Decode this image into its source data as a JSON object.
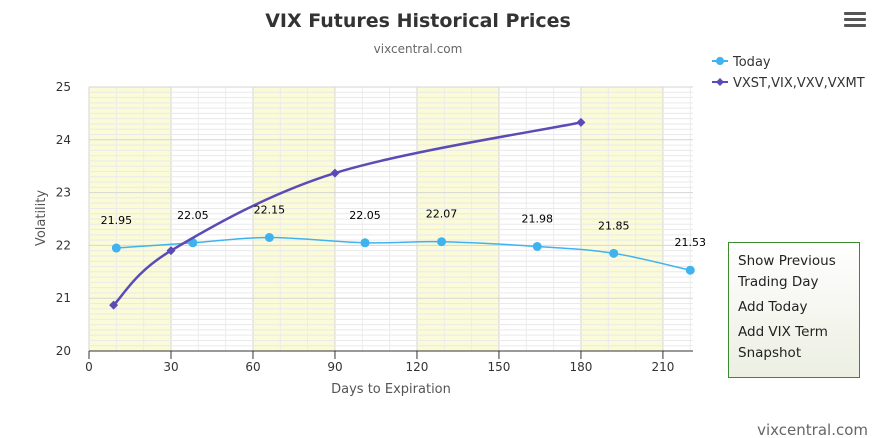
{
  "chart_data": {
    "type": "line",
    "title": "VIX Futures Historical Prices",
    "subtitle": "vixcentral.com",
    "xlabel": "Days to Expiration",
    "ylabel": "Volatility",
    "xlim": [
      0,
      221
    ],
    "ylim": [
      20,
      25
    ],
    "x_ticks": [
      "0",
      "30",
      "60",
      "90",
      "120",
      "150",
      "180",
      "210"
    ],
    "y_ticks": [
      "20",
      "21",
      "22",
      "23",
      "24",
      "25"
    ],
    "plot_bands": [
      [
        0,
        30
      ],
      [
        60,
        90
      ],
      [
        120,
        150
      ],
      [
        180,
        210
      ]
    ],
    "band_color": "#fbfbd8",
    "grid": true,
    "legend_position": "top-right",
    "series": [
      {
        "name": "Today",
        "color": "#3fb3ef",
        "marker": "circle",
        "x": [
          10,
          38,
          66,
          101,
          129,
          164,
          192,
          220
        ],
        "y": [
          21.95,
          22.05,
          22.15,
          22.05,
          22.07,
          21.98,
          21.85,
          21.53
        ],
        "labels": [
          "21.95",
          "22.05",
          "22.15",
          "22.05",
          "22.07",
          "21.98",
          "21.85",
          "21.53"
        ]
      },
      {
        "name": "VXST,VIX,VXV,VXMT",
        "color": "#5b4bb5",
        "marker": "diamond",
        "x": [
          9,
          30,
          90,
          180
        ],
        "y": [
          20.87,
          21.9,
          23.37,
          24.33
        ]
      }
    ]
  },
  "menu": {
    "icon": "hamburger-menu-icon",
    "items": [
      "Show Previous Trading Day",
      "Add Today",
      "Add VIX Term Snapshot"
    ]
  },
  "credit": "vixcentral.com"
}
